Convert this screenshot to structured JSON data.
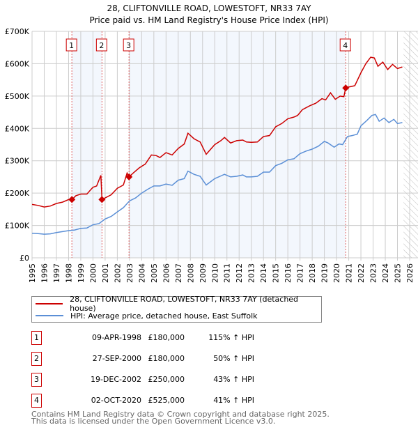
{
  "chart_data": {
    "type": "line",
    "title": "28, CLIFTONVILLE ROAD, LOWESTOFT, NR33 7AY",
    "subtitle": "Price paid vs. HM Land Registry's House Price Index (HPI)",
    "xlim": [
      1995,
      2026
    ],
    "ylim": [
      0,
      700000
    ],
    "y_ticks": [
      {
        "v": 0,
        "label": "£0"
      },
      {
        "v": 100000,
        "label": "£100K"
      },
      {
        "v": 200000,
        "label": "£200K"
      },
      {
        "v": 300000,
        "label": "£300K"
      },
      {
        "v": 400000,
        "label": "£400K"
      },
      {
        "v": 500000,
        "label": "£500K"
      },
      {
        "v": 600000,
        "label": "£600K"
      },
      {
        "v": 700000,
        "label": "£700K"
      }
    ],
    "x_ticks": [
      "1995",
      "1996",
      "1997",
      "1998",
      "1999",
      "2000",
      "2001",
      "2002",
      "2003",
      "2004",
      "2005",
      "2006",
      "2007",
      "2008",
      "2009",
      "2010",
      "2011",
      "2012",
      "2013",
      "2014",
      "2015",
      "2016",
      "2017",
      "2018",
      "2019",
      "2020",
      "2021",
      "2022",
      "2023",
      "2024",
      "2025",
      "2026"
    ],
    "grid": true,
    "series": [
      {
        "name": "28, CLIFTONVILLE ROAD, LOWESTOFT, NR33 7AY (detached house)",
        "color": "#cc0000",
        "x": [
          1995,
          1995.5,
          1996,
          1996.5,
          1997,
          1997.5,
          1998,
          1998.27,
          1998.6,
          1999,
          1999.5,
          2000,
          2000.3,
          2000.65,
          2000.74,
          2001,
          2001.5,
          2002,
          2002.5,
          2002.8,
          2002.96,
          2003.3,
          2003.8,
          2004.3,
          2004.8,
          2005.2,
          2005.5,
          2006,
          2006.5,
          2007,
          2007.5,
          2007.8,
          2008.3,
          2008.8,
          2009.3,
          2010,
          2010.5,
          2010.8,
          2011.3,
          2011.8,
          2012.3,
          2012.6,
          2013,
          2013.5,
          2014,
          2014.5,
          2015,
          2015.5,
          2016,
          2016.5,
          2016.8,
          2017.2,
          2017.8,
          2018.3,
          2018.8,
          2019.1,
          2019.5,
          2019.9,
          2020.3,
          2020.6,
          2020.75,
          2021,
          2021.5,
          2022,
          2022.4,
          2022.8,
          2023.1,
          2023.4,
          2023.8,
          2024.2,
          2024.6,
          2025,
          2025.4
        ],
        "y": [
          165000,
          162000,
          157000,
          160000,
          168000,
          172000,
          180000,
          180000,
          192000,
          197000,
          197000,
          218000,
          222000,
          255000,
          180000,
          185000,
          195000,
          215000,
          225000,
          262000,
          250000,
          262000,
          278000,
          290000,
          318000,
          316000,
          310000,
          325000,
          318000,
          338000,
          352000,
          385000,
          368000,
          358000,
          320000,
          350000,
          362000,
          372000,
          355000,
          362000,
          364000,
          358000,
          357000,
          358000,
          375000,
          378000,
          405000,
          415000,
          430000,
          435000,
          440000,
          458000,
          470000,
          478000,
          492000,
          488000,
          510000,
          490000,
          500000,
          498000,
          525000,
          528000,
          532000,
          572000,
          600000,
          620000,
          618000,
          592000,
          605000,
          582000,
          598000,
          585000,
          590000
        ]
      },
      {
        "name": "HPI: Average price, detached house, East Suffolk",
        "color": "#5b8fd6",
        "x": [
          1995,
          1995.5,
          1996,
          1996.5,
          1997,
          1997.5,
          1998,
          1998.5,
          1999,
          1999.5,
          2000,
          2000.5,
          2001,
          2001.5,
          2002,
          2002.5,
          2003,
          2003.5,
          2004,
          2004.5,
          2005,
          2005.5,
          2006,
          2006.5,
          2007,
          2007.5,
          2007.8,
          2008.3,
          2008.8,
          2009.3,
          2010,
          2010.5,
          2010.8,
          2011.3,
          2011.8,
          2012.3,
          2012.6,
          2013,
          2013.5,
          2014,
          2014.5,
          2015,
          2015.5,
          2016,
          2016.5,
          2017,
          2017.5,
          2018,
          2018.5,
          2019,
          2019.3,
          2019.8,
          2020.2,
          2020.5,
          2020.9,
          2021.3,
          2021.7,
          2022,
          2022.5,
          2022.9,
          2023.2,
          2023.5,
          2023.9,
          2024.3,
          2024.7,
          2025,
          2025.4
        ],
        "y": [
          76000,
          75000,
          73000,
          74000,
          78000,
          81000,
          84000,
          86000,
          91000,
          92000,
          102000,
          106000,
          120000,
          128000,
          142000,
          155000,
          176000,
          185000,
          200000,
          212000,
          222000,
          222000,
          228000,
          224000,
          240000,
          245000,
          268000,
          258000,
          252000,
          225000,
          245000,
          253000,
          258000,
          250000,
          252000,
          256000,
          250000,
          250000,
          252000,
          265000,
          265000,
          285000,
          292000,
          303000,
          306000,
          322000,
          330000,
          336000,
          345000,
          360000,
          355000,
          342000,
          352000,
          350000,
          375000,
          378000,
          382000,
          408000,
          425000,
          440000,
          443000,
          422000,
          432000,
          418000,
          428000,
          415000,
          418000
        ]
      }
    ],
    "sales": [
      {
        "num": "1",
        "x": 1998.27,
        "y": 180000,
        "date": "09-APR-1998",
        "price": "£180,000",
        "pct": "115% ↑ HPI"
      },
      {
        "num": "2",
        "x": 2000.74,
        "y": 180000,
        "date": "27-SEP-2000",
        "price": "£180,000",
        "pct": "50% ↑ HPI"
      },
      {
        "num": "3",
        "x": 2002.96,
        "y": 250000,
        "date": "19-DEC-2002",
        "price": "£250,000",
        "pct": "43% ↑ HPI"
      },
      {
        "num": "4",
        "x": 2020.75,
        "y": 525000,
        "date": "02-OCT-2020",
        "price": "£525,000",
        "pct": "41% ↑ HPI"
      }
    ],
    "shaded_ranges": [
      [
        1998.27,
        2000.74
      ],
      [
        2002.96,
        2020.75
      ]
    ],
    "forecast_from": 2025.5
  },
  "legend": {
    "red_label": "28, CLIFTONVILLE ROAD, LOWESTOFT, NR33 7AY (detached house)",
    "blue_label": "HPI: Average price, detached house, East Suffolk"
  },
  "footer": {
    "line1": "Contains HM Land Registry data © Crown copyright and database right 2025.",
    "line2": "This data is licensed under the Open Government Licence v3.0."
  }
}
